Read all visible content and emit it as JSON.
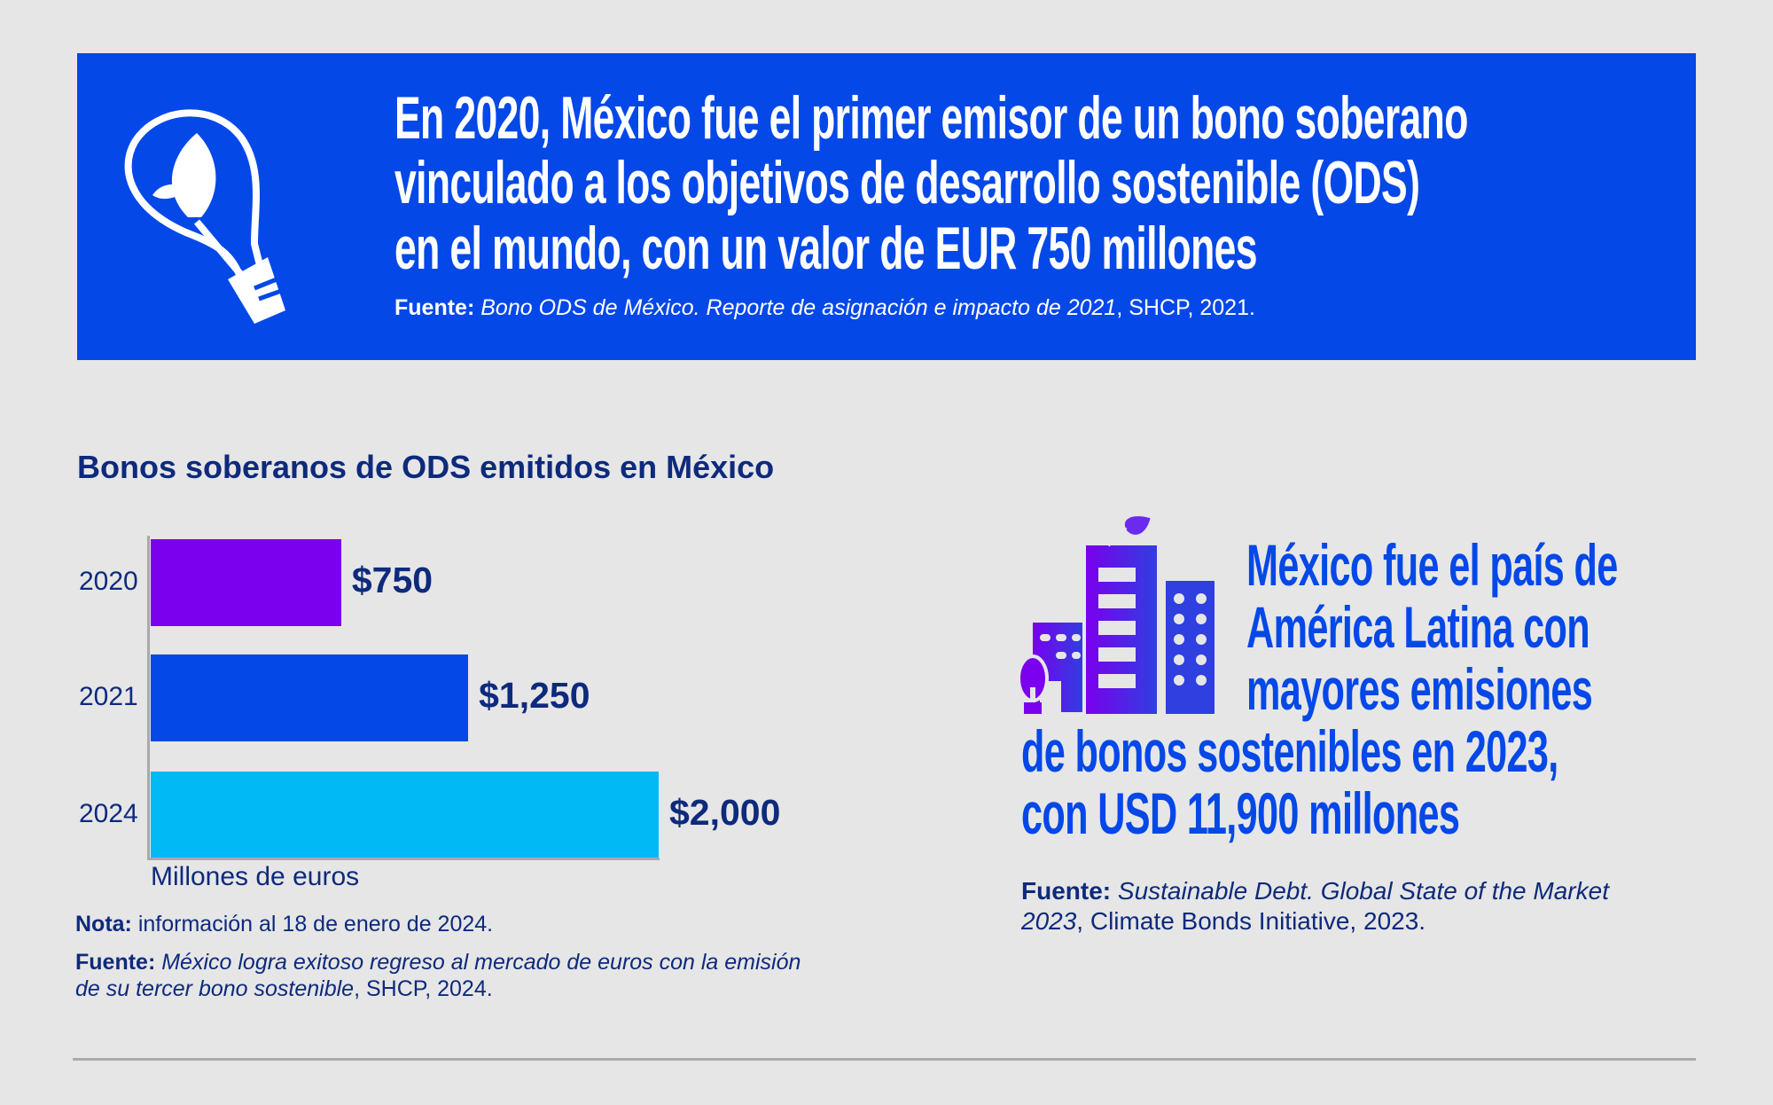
{
  "banner": {
    "headline": [
      "En 2020, México fue el primer emisor de un bono soberano",
      "vinculado a los objetivos de desarrollo sostenible (ODS)",
      "en el mundo, con un valor de EUR 750 millones"
    ],
    "source_label": "Fuente:",
    "source_title": "Bono ODS de México. Reporte de asignación e impacto de 2021",
    "source_rest": ", SHCP, 2021.",
    "icon": "lightbulb-leaf-icon",
    "color": "#0548e8"
  },
  "chart_data": {
    "type": "bar",
    "orientation": "horizontal",
    "title": "Bonos soberanos de ODS emitidos en México",
    "categories": [
      "2020",
      "2021",
      "2024"
    ],
    "values": [
      750,
      1250,
      2000
    ],
    "value_labels": [
      "$750",
      "$1,250",
      "$2,000"
    ],
    "colors": [
      "#7a00ee",
      "#0548e8",
      "#00b9f5"
    ],
    "xlabel": "Millones de euros",
    "ylabel": "",
    "xlim": [
      0,
      2000
    ],
    "grid": false
  },
  "notes": {
    "nota_label": "Nota:",
    "nota_text": " información al 18 de enero de 2024.",
    "source_label": "Fuente:",
    "source_title_1": " México logra exitoso regreso al mercado de euros con la emisión",
    "source_title_2": "de su tercer bono sostenible",
    "source_rest": ", SHCP, 2024."
  },
  "right": {
    "icon": "buildings-leaf-icon",
    "headline": [
      "México fue el país de",
      "América Latina con",
      "mayores emisiones",
      "de bonos sostenibles en 2023,",
      "con USD 11,900 millones"
    ],
    "source_label": "Fuente:",
    "source_title_1": " Sustainable Debt. Global State of the Market",
    "source_title_2": "2023",
    "source_rest": ", Climate Bonds Initiative, 2023."
  }
}
